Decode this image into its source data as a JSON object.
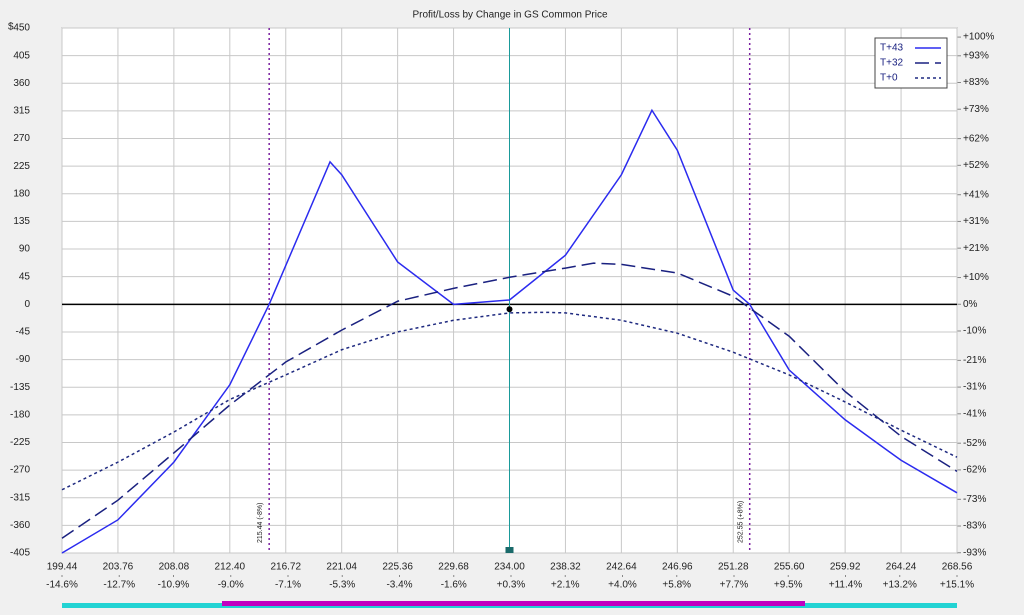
{
  "chart_data": {
    "type": "line",
    "title": "Profit/Loss by Change in GS Common Price",
    "y_label": "$",
    "xlim": [
      199.44,
      268.56
    ],
    "xticks": [
      199.44,
      203.76,
      208.08,
      {
        "value": 212.4,
        "label": "212.40"
      },
      216.72,
      221.04,
      225.36,
      229.68,
      {
        "value": 234,
        "label": "234.00"
      },
      238.32,
      242.64,
      246.96,
      251.28,
      {
        "value": 255.6,
        "label": "255.60"
      },
      259.92,
      264.24,
      268.56
    ],
    "x2lim": [
      -14.6,
      15.1
    ],
    "x2ticks": [
      {
        "value": -14.6,
        "label": "-14.6%"
      },
      {
        "value": -12.7,
        "label": "-12.7%"
      },
      {
        "value": -10.9,
        "label": "-10.9%"
      },
      {
        "value": -9.0,
        "label": "-9.0%"
      },
      {
        "value": -7.1,
        "label": "-7.1%"
      },
      {
        "value": -5.3,
        "label": "-5.3%"
      },
      {
        "value": -3.4,
        "label": "-3.4%"
      },
      {
        "value": -1.6,
        "label": "-1.6%"
      },
      {
        "value": 0.3,
        "label": "+0.3%"
      },
      {
        "value": 2.1,
        "label": "+2.1%"
      },
      {
        "value": 4.0,
        "label": "+4.0%"
      },
      {
        "value": 5.8,
        "label": "+5.8%"
      },
      {
        "value": 7.7,
        "label": "+7.7%"
      },
      {
        "value": 9.5,
        "label": "+9.5%"
      },
      {
        "value": 11.4,
        "label": "+11.4%"
      },
      {
        "value": 13.2,
        "label": "+13.2%"
      },
      {
        "value": 15.1,
        "label": "+15.1%"
      }
    ],
    "ylim": [
      -405,
      450
    ],
    "yticks": [
      450,
      405,
      360,
      315,
      270,
      225,
      180,
      135,
      90,
      45,
      0,
      -45,
      -90,
      -135,
      -180,
      -225,
      -270,
      -315,
      -360,
      -405
    ],
    "y2lim": [
      -93.1,
      103.4
    ],
    "y2ticks": [
      {
        "value": 100,
        "label": "+100%"
      },
      {
        "value": 93,
        "label": "+93%"
      },
      {
        "value": 83,
        "label": "+83%"
      },
      {
        "value": 73,
        "label": "+73%"
      },
      {
        "value": 62,
        "label": "+62%"
      },
      {
        "value": 52,
        "label": "+52%"
      },
      {
        "value": 41,
        "label": "+41%"
      },
      {
        "value": 31,
        "label": "+31%"
      },
      {
        "value": 21,
        "label": "+21%"
      },
      {
        "value": 10,
        "label": "+10%"
      },
      {
        "value": 0,
        "label": "0%"
      },
      {
        "value": -10,
        "label": "-10%"
      },
      {
        "value": -21,
        "label": "-21%"
      },
      {
        "value": -31,
        "label": "-31%"
      },
      {
        "value": -41,
        "label": "-41%"
      },
      {
        "value": -52,
        "label": "-52%"
      },
      {
        "value": -62,
        "label": "-62%"
      },
      {
        "value": -73,
        "label": "-73%"
      },
      {
        "value": -83,
        "label": "-83%"
      },
      {
        "value": -93,
        "label": "-93%"
      }
    ],
    "grid": true,
    "legend": "top-right",
    "series": [
      {
        "name": "T+43",
        "color": "#2b2bef",
        "dash": "solid",
        "x": [
          199.44,
          203.76,
          208.08,
          212.4,
          215.44,
          220.14,
          221.04,
          225.36,
          229.68,
          234,
          238.32,
          242.64,
          245.0,
          246.96,
          251.28,
          252.55,
          255.6,
          259.92,
          264.24,
          268.56
        ],
        "values": [
          -405,
          -351,
          -257,
          -131,
          0,
          232,
          211,
          69,
          0,
          7,
          80,
          211,
          316,
          251,
          23,
          0,
          -107,
          -188,
          -254,
          -307
        ]
      },
      {
        "name": "T+32",
        "color": "#1a2180",
        "dash": "dashed",
        "x": [
          199.44,
          203.76,
          208.08,
          212.4,
          216.72,
          221.04,
          225.36,
          229.68,
          234,
          238.32,
          240.5,
          242.64,
          246.96,
          251.28,
          255.6,
          259.92,
          264.24,
          268.56
        ],
        "values": [
          -381,
          -319,
          -242,
          -164,
          -94,
          -42,
          5,
          26,
          44,
          59,
          67,
          65,
          51,
          13,
          -52,
          -142,
          -215,
          -272
        ]
      },
      {
        "name": "T+0",
        "color": "#1f2a80",
        "dash": "dotted",
        "x": [
          199.44,
          203.76,
          208.08,
          212.4,
          216.72,
          221.04,
          225.36,
          229.68,
          234,
          236.7,
          238.32,
          242.64,
          246.96,
          251.28,
          255.6,
          259.92,
          264.24,
          268.56
        ],
        "values": [
          -302,
          -257,
          -208,
          -155,
          -115,
          -74,
          -45,
          -26,
          -14,
          -13,
          -14,
          -26,
          -47,
          -78,
          -115,
          -159,
          -205,
          -249
        ]
      }
    ],
    "markers": [
      {
        "x": 215.44,
        "label": "215.44 (-8%)"
      },
      {
        "x": 252.55,
        "label": "252.55 (+8%)"
      }
    ],
    "current": {
      "x": 234,
      "y": -8
    }
  }
}
